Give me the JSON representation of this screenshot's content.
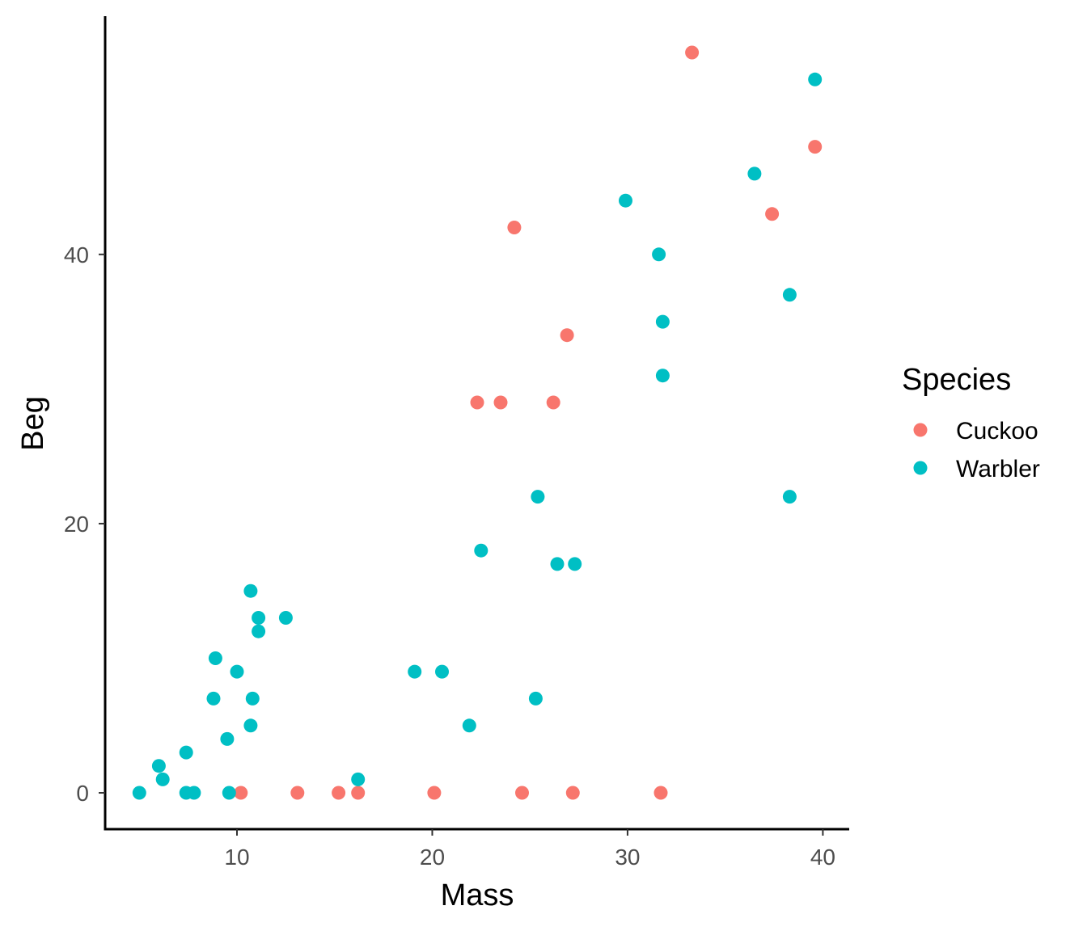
{
  "chart_data": {
    "type": "scatter",
    "title": "",
    "xlabel": "Mass",
    "ylabel": "Beg",
    "xlim": [
      3.25,
      41.35
    ],
    "ylim": [
      -2.7,
      57.7
    ],
    "xticks": [
      10,
      20,
      30,
      40
    ],
    "yticks": [
      0,
      20,
      40
    ],
    "xtick_labels": [
      "10",
      "20",
      "30",
      "40"
    ],
    "ytick_labels": [
      "0",
      "20",
      "40"
    ],
    "grid": false,
    "legend": {
      "title": "Species",
      "position": "right"
    },
    "series": [
      {
        "name": "Cuckoo",
        "color": "#F8766D",
        "points": [
          {
            "x": 33.3,
            "y": 55
          },
          {
            "x": 39.6,
            "y": 48
          },
          {
            "x": 37.4,
            "y": 43
          },
          {
            "x": 24.2,
            "y": 42
          },
          {
            "x": 26.9,
            "y": 34
          },
          {
            "x": 22.3,
            "y": 29
          },
          {
            "x": 23.5,
            "y": 29
          },
          {
            "x": 26.2,
            "y": 29
          },
          {
            "x": 10.2,
            "y": 0
          },
          {
            "x": 13.1,
            "y": 0
          },
          {
            "x": 15.2,
            "y": 0
          },
          {
            "x": 16.2,
            "y": 0
          },
          {
            "x": 20.1,
            "y": 0
          },
          {
            "x": 24.6,
            "y": 0
          },
          {
            "x": 27.2,
            "y": 0
          },
          {
            "x": 31.7,
            "y": 0
          }
        ]
      },
      {
        "name": "Warbler",
        "color": "#00BFC4",
        "points": [
          {
            "x": 39.6,
            "y": 53
          },
          {
            "x": 36.5,
            "y": 46
          },
          {
            "x": 29.9,
            "y": 44
          },
          {
            "x": 31.6,
            "y": 40
          },
          {
            "x": 38.3,
            "y": 37
          },
          {
            "x": 31.8,
            "y": 35
          },
          {
            "x": 31.8,
            "y": 31
          },
          {
            "x": 25.4,
            "y": 22
          },
          {
            "x": 38.3,
            "y": 22
          },
          {
            "x": 22.5,
            "y": 18
          },
          {
            "x": 26.4,
            "y": 17
          },
          {
            "x": 27.3,
            "y": 17
          },
          {
            "x": 10.7,
            "y": 15
          },
          {
            "x": 11.1,
            "y": 13
          },
          {
            "x": 12.5,
            "y": 13
          },
          {
            "x": 11.1,
            "y": 12
          },
          {
            "x": 8.9,
            "y": 10
          },
          {
            "x": 10.0,
            "y": 9
          },
          {
            "x": 19.1,
            "y": 9
          },
          {
            "x": 20.5,
            "y": 9
          },
          {
            "x": 8.8,
            "y": 7
          },
          {
            "x": 10.8,
            "y": 7
          },
          {
            "x": 25.3,
            "y": 7
          },
          {
            "x": 10.7,
            "y": 5
          },
          {
            "x": 21.9,
            "y": 5
          },
          {
            "x": 9.5,
            "y": 4
          },
          {
            "x": 7.4,
            "y": 3
          },
          {
            "x": 6.0,
            "y": 2
          },
          {
            "x": 6.2,
            "y": 1
          },
          {
            "x": 16.2,
            "y": 1
          },
          {
            "x": 5.0,
            "y": 0
          },
          {
            "x": 7.4,
            "y": 0
          },
          {
            "x": 7.8,
            "y": 0
          },
          {
            "x": 9.6,
            "y": 0
          }
        ]
      }
    ]
  }
}
